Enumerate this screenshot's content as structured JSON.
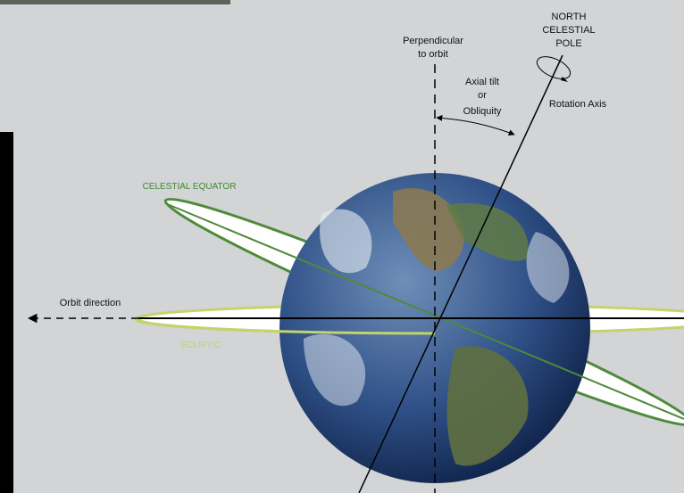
{
  "labels": {
    "north_celestial_pole": [
      "NORTH",
      "CELESTIAL",
      "POLE"
    ],
    "perpendicular": [
      "Perpendicular",
      "to orbit"
    ],
    "axial_tilt": [
      "Axial tilt",
      "or",
      "Obliquity"
    ],
    "rotation_axis": "Rotation Axis",
    "celestial_equator": "CELESTIAL EQUATOR",
    "orbit_direction": "Orbit direction",
    "ecliptic": "ECLIPTIC"
  }
}
